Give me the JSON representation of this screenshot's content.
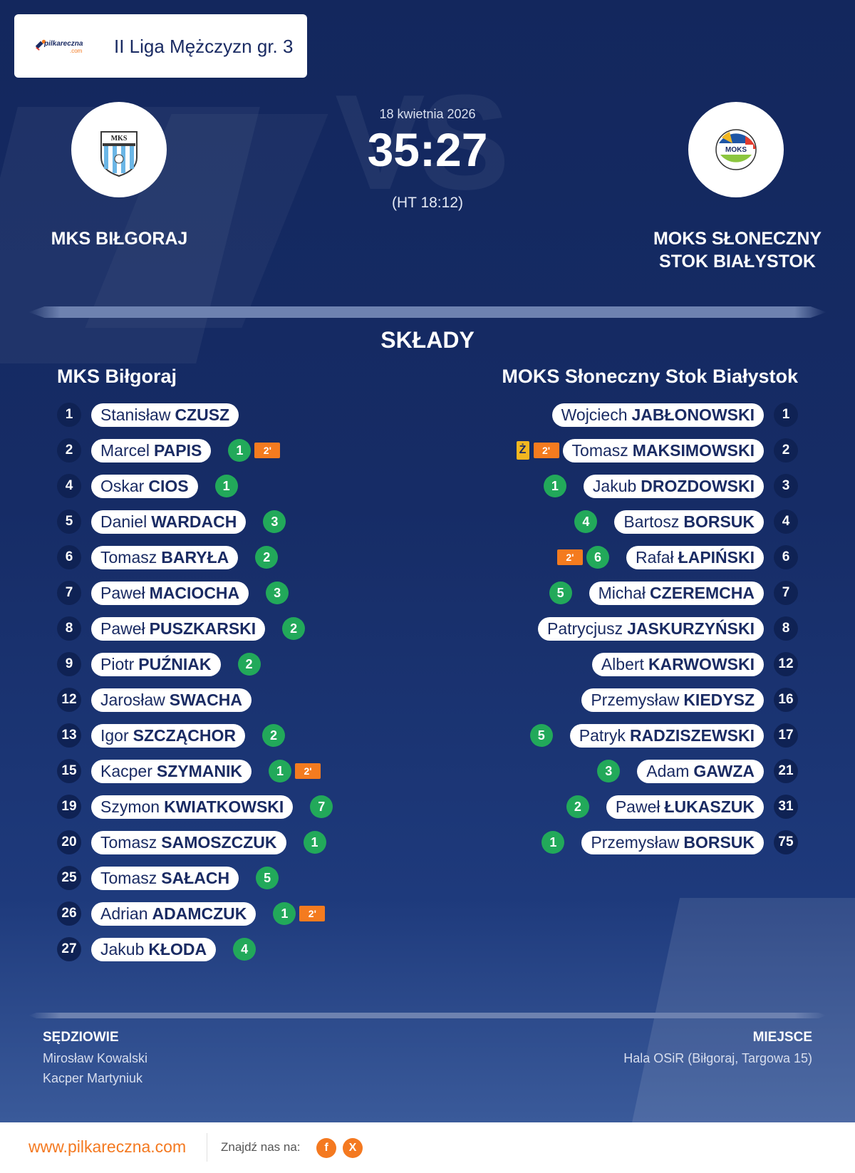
{
  "league": {
    "logo_text_main": "pilkareczna",
    "logo_text_sub": ".com",
    "title": "II Liga Mężczyzn gr. 3"
  },
  "match": {
    "date": "18 kwietnia 2026",
    "score": "35:27",
    "halftime": "(HT 18:12)",
    "home_team_line1": "MKS BIŁGORAJ",
    "away_team_line1": "MOKS SŁONECZNY",
    "away_team_line2": "STOK BIAŁYSTOK",
    "home_crest_text": "MKS",
    "away_crest_text": "MOKS"
  },
  "lineups": {
    "heading": "SKŁADY",
    "home_name": "MKS Biłgoraj",
    "away_name": "MOKS Słoneczny Stok Białystok",
    "home": [
      {
        "num": "1",
        "first": "Stanisław",
        "last": "CZUSZ",
        "goals": null,
        "susp": null,
        "yellow": null
      },
      {
        "num": "2",
        "first": "Marcel",
        "last": "PAPIS",
        "goals": "1",
        "susp": "2'",
        "yellow": null
      },
      {
        "num": "4",
        "first": "Oskar",
        "last": "CIOS",
        "goals": "1",
        "susp": null,
        "yellow": null
      },
      {
        "num": "5",
        "first": "Daniel",
        "last": "WARDACH",
        "goals": "3",
        "susp": null,
        "yellow": null
      },
      {
        "num": "6",
        "first": "Tomasz",
        "last": "BARYŁA",
        "goals": "2",
        "susp": null,
        "yellow": null
      },
      {
        "num": "7",
        "first": "Paweł",
        "last": "MACIOCHA",
        "goals": "3",
        "susp": null,
        "yellow": null
      },
      {
        "num": "8",
        "first": "Paweł",
        "last": "PUSZKARSKI",
        "goals": "2",
        "susp": null,
        "yellow": null
      },
      {
        "num": "9",
        "first": "Piotr",
        "last": "PUŹNIAK",
        "goals": "2",
        "susp": null,
        "yellow": null
      },
      {
        "num": "12",
        "first": "Jarosław",
        "last": "SWACHA",
        "goals": null,
        "susp": null,
        "yellow": null
      },
      {
        "num": "13",
        "first": "Igor",
        "last": "SZCZĄCHOR",
        "goals": "2",
        "susp": null,
        "yellow": null
      },
      {
        "num": "15",
        "first": "Kacper",
        "last": "SZYMANIK",
        "goals": "1",
        "susp": "2'",
        "yellow": null
      },
      {
        "num": "19",
        "first": "Szymon",
        "last": "KWIATKOWSKI",
        "goals": "7",
        "susp": null,
        "yellow": null
      },
      {
        "num": "20",
        "first": "Tomasz",
        "last": "SAMOSZCZUK",
        "goals": "1",
        "susp": null,
        "yellow": null
      },
      {
        "num": "25",
        "first": "Tomasz",
        "last": "SAŁACH",
        "goals": "5",
        "susp": null,
        "yellow": null
      },
      {
        "num": "26",
        "first": "Adrian",
        "last": "ADAMCZUK",
        "goals": "1",
        "susp": "2'",
        "yellow": null
      },
      {
        "num": "27",
        "first": "Jakub",
        "last": "KŁODA",
        "goals": "4",
        "susp": null,
        "yellow": null
      }
    ],
    "away": [
      {
        "num": "1",
        "first": "Wojciech",
        "last": "JABŁONOWSKI",
        "goals": null,
        "susp": null,
        "yellow": null
      },
      {
        "num": "2",
        "first": "Tomasz",
        "last": "MAKSIMOWSKI",
        "goals": null,
        "susp": "2'",
        "yellow": "Ż"
      },
      {
        "num": "3",
        "first": "Jakub",
        "last": "DROZDOWSKI",
        "goals": "1",
        "susp": null,
        "yellow": null
      },
      {
        "num": "4",
        "first": "Bartosz",
        "last": "BORSUK",
        "goals": "4",
        "susp": null,
        "yellow": null
      },
      {
        "num": "6",
        "first": "Rafał",
        "last": "ŁAPIŃSKI",
        "goals": "6",
        "susp": "2'",
        "yellow": null
      },
      {
        "num": "7",
        "first": "Michał",
        "last": "CZEREMCHA",
        "goals": "5",
        "susp": null,
        "yellow": null
      },
      {
        "num": "8",
        "first": "Patrycjusz",
        "last": "JASKURZYŃSKI",
        "goals": null,
        "susp": null,
        "yellow": null
      },
      {
        "num": "12",
        "first": "Albert",
        "last": "KARWOWSKI",
        "goals": null,
        "susp": null,
        "yellow": null
      },
      {
        "num": "16",
        "first": "Przemysław",
        "last": "KIEDYSZ",
        "goals": null,
        "susp": null,
        "yellow": null
      },
      {
        "num": "17",
        "first": "Patryk",
        "last": "RADZISZEWSKI",
        "goals": "5",
        "susp": null,
        "yellow": null
      },
      {
        "num": "21",
        "first": "Adam",
        "last": "GAWZA",
        "goals": "3",
        "susp": null,
        "yellow": null
      },
      {
        "num": "31",
        "first": "Paweł",
        "last": "ŁUKASZUK",
        "goals": "2",
        "susp": null,
        "yellow": null
      },
      {
        "num": "75",
        "first": "Przemysław",
        "last": "BORSUK",
        "goals": "1",
        "susp": null,
        "yellow": null
      }
    ]
  },
  "officials": {
    "referees_heading": "SĘDZIOWIE",
    "referees": [
      "Mirosław Kowalski",
      "Kacper Martyniuk"
    ],
    "venue_heading": "MIEJSCE",
    "venue": "Hala OSiR (Biłgoraj, Targowa 15)"
  },
  "footer": {
    "url": "www.pilkareczna.com",
    "find_us": "Znajdź nas na:",
    "facebook_letter": "f",
    "x_letter": "X"
  },
  "colors": {
    "background_top": "#13275d",
    "goals_badge": "#22a95a",
    "suspension_badge": "#f47b1f",
    "yellow_card": "#f2b720",
    "accent": "#f47920"
  },
  "icons": {
    "facebook": "facebook-icon",
    "x": "x-icon",
    "home_crest": "mks-bilgoraj-crest-icon",
    "away_crest": "moks-crest-icon"
  }
}
